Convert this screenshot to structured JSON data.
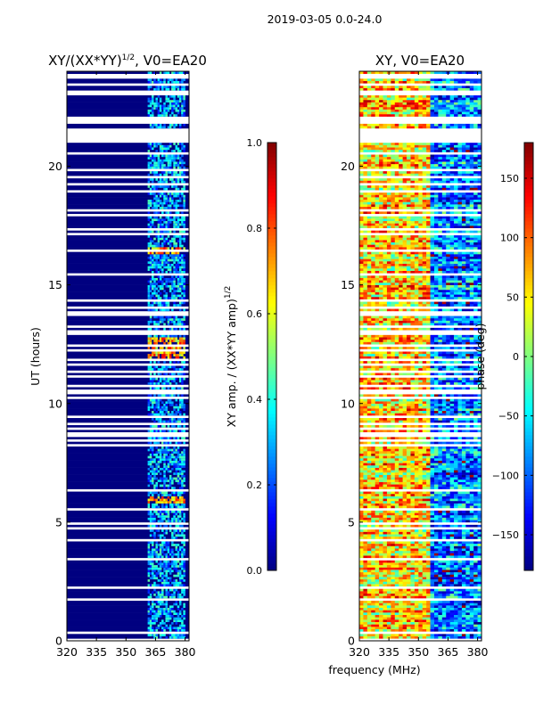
{
  "figure": {
    "suptitle": "2019-03-05 0.0-24.0",
    "xlabel": "frequency (MHz)",
    "colors": {
      "dark_blue": "#00007f",
      "gap": "#ffffff",
      "axis": "#000000"
    }
  },
  "chart_data": [
    {
      "type": "heatmap",
      "title_prefix": "XY/(XX*YY)",
      "title_exp": "1/2",
      "title_suffix": ", V0=EA20",
      "xlabel": "",
      "ylabel": "UT (hours)",
      "xlim": [
        320,
        382
      ],
      "ylim": [
        0,
        24
      ],
      "xticks": [
        320,
        335,
        350,
        365,
        380
      ],
      "yticks": [
        0,
        5,
        10,
        15,
        20
      ],
      "colorbar": {
        "label_prefix": "XY amp. / (XX*YY amp)",
        "label_exp": "1/2",
        "range": [
          0,
          1
        ],
        "ticks": [
          "0.0",
          "0.2",
          "0.4",
          "0.6",
          "0.8",
          "1.0"
        ]
      },
      "features": {
        "background_value": 0.0,
        "active_band_mhz": [
          361,
          380
        ],
        "active_band_value": 0.3,
        "hot_hours": [
          [
            11.8,
            12.8
          ],
          [
            5.8,
            6.1
          ],
          [
            16.3,
            16.6
          ]
        ],
        "hot_value": 0.7
      }
    },
    {
      "type": "heatmap",
      "title": "XY, V0=EA20",
      "xlabel": "frequency (MHz)",
      "ylabel": "",
      "xlim": [
        320,
        382
      ],
      "ylim": [
        0,
        24
      ],
      "xticks": [
        320,
        335,
        350,
        365,
        380
      ],
      "yticks": [
        0,
        5,
        10,
        15,
        20
      ],
      "colorbar": {
        "label": "phase (deg)",
        "range": [
          -180,
          180
        ],
        "ticks": [
          "−150",
          "−100",
          "−50",
          "0",
          "50",
          "100",
          "150"
        ]
      },
      "features": {
        "low_freq_phase_deg": 60,
        "high_freq_phase_deg": -90,
        "wrap_freq_mhz": 356
      }
    }
  ]
}
